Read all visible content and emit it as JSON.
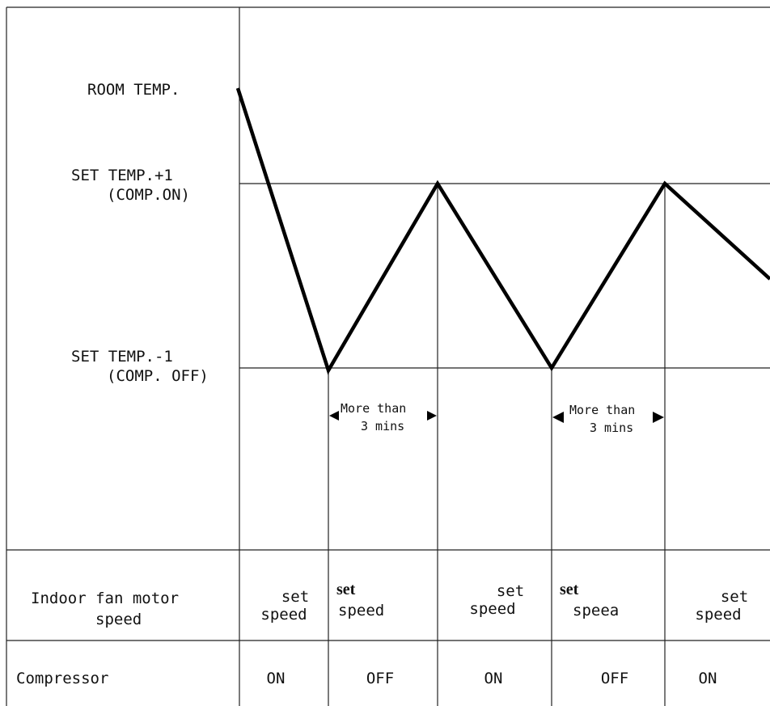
{
  "y_labels": {
    "room_temp": "ROOM TEMP.",
    "set_plus_line1": "SET TEMP.+1",
    "set_plus_line2": "(COMP.ON)",
    "set_minus_line1": "SET TEMP.-1",
    "set_minus_line2": "(COMP. OFF)"
  },
  "intervals": [
    {
      "line1": "More than",
      "line2": "3 mins"
    },
    {
      "line1": "More than",
      "line2": "3 mins"
    }
  ],
  "table": {
    "fan_row_label_line1": "Indoor fan motor",
    "fan_row_label_line2": "speed",
    "compressor_row_label": "Compressor",
    "fan_cells": [
      {
        "line1": "set",
        "line2": "speed"
      },
      {
        "line1": "set",
        "line2": "speed"
      },
      {
        "line1": "set",
        "line2": "speed"
      },
      {
        "line1": "set",
        "line2": "speea"
      },
      {
        "line1": "set",
        "line2": "speed"
      }
    ],
    "compressor_cells": [
      "ON",
      "OFF",
      "ON",
      "OFF",
      "ON"
    ]
  },
  "colors": {
    "line": "#000000",
    "grid": "#222222"
  }
}
